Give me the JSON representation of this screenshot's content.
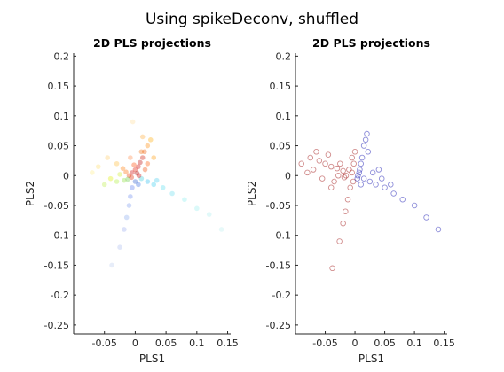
{
  "figure": {
    "title": "Using spikeDeconv, shuffled"
  },
  "chart_data": [
    {
      "type": "scatter",
      "title": "2D PLS projections",
      "xlabel": "PLS1",
      "ylabel": "PLS2",
      "xlim": [
        -0.1,
        0.155
      ],
      "ylim": [
        -0.265,
        0.205
      ],
      "xticks": [
        -0.05,
        0,
        0.05,
        0.1,
        0.15
      ],
      "xtick_labels": [
        "-0.05",
        "0",
        "0.05",
        "0.1",
        "0.15"
      ],
      "yticks": [
        0.2,
        0.15,
        0.1,
        0.05,
        0,
        -0.05,
        -0.1,
        -0.15,
        -0.2,
        -0.25
      ],
      "ytick_labels": [
        "0.2",
        "0.15",
        "0.1",
        "0.05",
        "0",
        "-0.05",
        "-0.1",
        "-0.15",
        "-0.2",
        "-0.25"
      ],
      "grid": false,
      "colormap": "jet",
      "points": [
        {
          "x": -0.005,
          "y": 0.005,
          "c": "#cc0000"
        },
        {
          "x": 0.0,
          "y": 0.01,
          "c": "#dd1100"
        },
        {
          "x": 0.005,
          "y": 0.015,
          "c": "#cc0000"
        },
        {
          "x": -0.01,
          "y": 0.0,
          "c": "#ee3300"
        },
        {
          "x": 0.008,
          "y": 0.022,
          "c": "#bb0000"
        },
        {
          "x": 0.012,
          "y": 0.03,
          "c": "#cc1100"
        },
        {
          "x": -0.002,
          "y": 0.018,
          "c": "#ff4400"
        },
        {
          "x": 0.003,
          "y": 0.004,
          "c": "#aa0000"
        },
        {
          "x": -0.015,
          "y": 0.006,
          "c": "#ff6600"
        },
        {
          "x": 0.015,
          "y": 0.04,
          "c": "#ee5500"
        },
        {
          "x": 0.02,
          "y": 0.05,
          "c": "#ff8800"
        },
        {
          "x": 0.025,
          "y": 0.06,
          "c": "#ffaa00"
        },
        {
          "x": -0.02,
          "y": 0.012,
          "c": "#ff7700"
        },
        {
          "x": -0.03,
          "y": 0.02,
          "c": "#ffbb33"
        },
        {
          "x": -0.045,
          "y": 0.03,
          "c": "#ffcc66"
        },
        {
          "x": -0.06,
          "y": 0.015,
          "c": "#ffdd66"
        },
        {
          "x": -0.04,
          "y": -0.005,
          "c": "#ddee00"
        },
        {
          "x": -0.03,
          "y": -0.01,
          "c": "#aaee33"
        },
        {
          "x": -0.025,
          "y": 0.002,
          "c": "#ccee22"
        },
        {
          "x": -0.07,
          "y": 0.005,
          "c": "#ffee88"
        },
        {
          "x": -0.05,
          "y": -0.015,
          "c": "#bbee44"
        },
        {
          "x": -0.018,
          "y": -0.008,
          "c": "#88dd33"
        },
        {
          "x": -0.012,
          "y": -0.006,
          "c": "#66cc44"
        },
        {
          "x": 0.01,
          "y": -0.005,
          "c": "#33ccdd"
        },
        {
          "x": 0.02,
          "y": -0.01,
          "c": "#22bbee"
        },
        {
          "x": 0.03,
          "y": -0.015,
          "c": "#33ccee"
        },
        {
          "x": 0.045,
          "y": -0.02,
          "c": "#55ddee"
        },
        {
          "x": 0.06,
          "y": -0.03,
          "c": "#66ddee"
        },
        {
          "x": 0.08,
          "y": -0.04,
          "c": "#88eeee"
        },
        {
          "x": 0.1,
          "y": -0.055,
          "c": "#99eeee"
        },
        {
          "x": 0.12,
          "y": -0.065,
          "c": "#aaeeee"
        },
        {
          "x": 0.14,
          "y": -0.09,
          "c": "#bbeeee"
        },
        {
          "x": 0.035,
          "y": -0.008,
          "c": "#44ccee"
        },
        {
          "x": -0.005,
          "y": -0.02,
          "c": "#5577ee"
        },
        {
          "x": -0.008,
          "y": -0.035,
          "c": "#6688ee"
        },
        {
          "x": -0.01,
          "y": -0.05,
          "c": "#7799ee"
        },
        {
          "x": -0.014,
          "y": -0.07,
          "c": "#88aaee"
        },
        {
          "x": -0.018,
          "y": -0.09,
          "c": "#99aaee"
        },
        {
          "x": -0.025,
          "y": -0.12,
          "c": "#aabbee"
        },
        {
          "x": -0.038,
          "y": -0.15,
          "c": "#bbccee"
        },
        {
          "x": 0.005,
          "y": -0.015,
          "c": "#3366dd"
        },
        {
          "x": 0.0,
          "y": -0.01,
          "c": "#2255cc"
        },
        {
          "x": 0.01,
          "y": 0.04,
          "c": "#ee6600"
        },
        {
          "x": 0.012,
          "y": 0.065,
          "c": "#ffaa33"
        },
        {
          "x": -0.004,
          "y": 0.09,
          "c": "#ffdd99"
        },
        {
          "x": 0.02,
          "y": 0.02,
          "c": "#ff5500"
        },
        {
          "x": 0.03,
          "y": 0.03,
          "c": "#ff9900"
        },
        {
          "x": -0.008,
          "y": 0.03,
          "c": "#ff8844"
        },
        {
          "x": 0.006,
          "y": 0.0,
          "c": "#cc0000"
        },
        {
          "x": -0.006,
          "y": -0.003,
          "c": "#dd2200"
        },
        {
          "x": 0.016,
          "y": 0.01,
          "c": "#ee4400"
        }
      ]
    },
    {
      "type": "scatter",
      "title": "2D PLS projections",
      "xlabel": "PLS1",
      "ylabel": "PLS2",
      "xlim": [
        -0.1,
        0.155
      ],
      "ylim": [
        -0.265,
        0.205
      ],
      "xticks": [
        -0.05,
        0,
        0.05,
        0.1,
        0.15
      ],
      "xtick_labels": [
        "-0.05",
        "0",
        "0.05",
        "0.1",
        "0.15"
      ],
      "yticks": [
        0.2,
        0.15,
        0.1,
        0.05,
        0,
        -0.05,
        -0.1,
        -0.15,
        -0.2,
        -0.25
      ],
      "ytick_labels": [
        "0.2",
        "0.15",
        "0.1",
        "0.05",
        "0",
        "-0.05",
        "-0.1",
        "-0.15",
        "-0.2",
        "-0.25"
      ],
      "grid": false,
      "groups": [
        {
          "color": "#990000",
          "points": [
            [
              -0.005,
              0.005
            ],
            [
              -0.01,
              0.01
            ],
            [
              -0.015,
              0.0
            ],
            [
              -0.02,
              0.008
            ],
            [
              -0.03,
              0.012
            ],
            [
              -0.04,
              0.015
            ],
            [
              -0.05,
              0.02
            ],
            [
              -0.06,
              0.025
            ],
            [
              -0.07,
              0.01
            ],
            [
              -0.08,
              0.005
            ],
            [
              -0.09,
              0.02
            ],
            [
              -0.055,
              -0.005
            ],
            [
              -0.035,
              -0.01
            ],
            [
              -0.025,
              0.02
            ],
            [
              -0.045,
              0.035
            ],
            [
              -0.065,
              0.04
            ],
            [
              -0.005,
              0.03
            ],
            [
              0.0,
              0.04
            ],
            [
              -0.002,
              0.02
            ],
            [
              -0.008,
              -0.02
            ],
            [
              -0.012,
              -0.04
            ],
            [
              -0.016,
              -0.06
            ],
            [
              -0.02,
              -0.08
            ],
            [
              -0.026,
              -0.11
            ],
            [
              -0.038,
              -0.155
            ],
            [
              -0.003,
              -0.01
            ],
            [
              -0.018,
              -0.003
            ],
            [
              -0.028,
              0.0
            ],
            [
              -0.075,
              0.03
            ],
            [
              -0.04,
              -0.02
            ]
          ]
        },
        {
          "color": "#0000aa",
          "points": [
            [
              0.005,
              0.0
            ],
            [
              0.008,
              0.01
            ],
            [
              0.01,
              0.02
            ],
            [
              0.012,
              0.03
            ],
            [
              0.015,
              0.05
            ],
            [
              0.018,
              0.06
            ],
            [
              0.02,
              0.07
            ],
            [
              0.015,
              -0.005
            ],
            [
              0.025,
              -0.01
            ],
            [
              0.035,
              -0.015
            ],
            [
              0.05,
              -0.02
            ],
            [
              0.065,
              -0.03
            ],
            [
              0.08,
              -0.04
            ],
            [
              0.1,
              -0.05
            ],
            [
              0.12,
              -0.07
            ],
            [
              0.14,
              -0.09
            ],
            [
              0.01,
              -0.015
            ],
            [
              0.03,
              0.005
            ],
            [
              0.04,
              0.01
            ],
            [
              0.022,
              0.04
            ],
            [
              0.004,
              -0.005
            ],
            [
              0.007,
              0.005
            ],
            [
              0.045,
              -0.005
            ],
            [
              0.06,
              -0.015
            ]
          ]
        }
      ]
    }
  ]
}
